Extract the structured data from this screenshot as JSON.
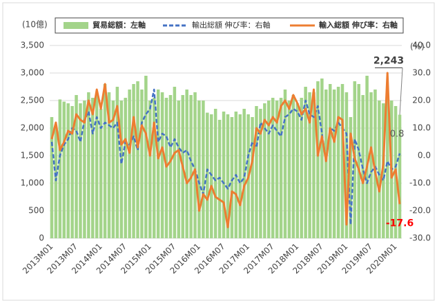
{
  "chart_data": {
    "type": "bar_line",
    "left_axis_unit": "(10億)",
    "right_axis_unit": "(%)",
    "categories": [
      "2013M01",
      null,
      null,
      null,
      null,
      null,
      "2013M07",
      null,
      null,
      null,
      null,
      null,
      "2014M01",
      null,
      null,
      null,
      null,
      null,
      "2014M07",
      null,
      null,
      null,
      null,
      null,
      "2015M01",
      null,
      null,
      null,
      null,
      null,
      "2015M07",
      null,
      null,
      null,
      null,
      null,
      "2016M01",
      null,
      null,
      null,
      null,
      null,
      "2016M07",
      null,
      null,
      null,
      null,
      null,
      "2017M01",
      null,
      null,
      null,
      null,
      null,
      "2017M07",
      null,
      null,
      null,
      null,
      null,
      "2018M01",
      null,
      null,
      null,
      null,
      null,
      "2018M07",
      null,
      null,
      null,
      null,
      null,
      "2019M01",
      null,
      null,
      null,
      null,
      null,
      "2019M07",
      null,
      null,
      null,
      null,
      null,
      "2020M01",
      null
    ],
    "ylim": [
      0,
      3500
    ],
    "yticks": [
      0,
      500,
      {
        "value": 1000,
        "label": "1,000"
      },
      {
        "value": 1500,
        "label": "1,500"
      },
      {
        "value": 2000,
        "label": "2,000"
      },
      {
        "value": 2500,
        "label": "2,500"
      },
      {
        "value": 3000,
        "label": "3,000"
      },
      {
        "value": 3500,
        "label": "3,500"
      }
    ],
    "y2lim": [
      -30,
      40
    ],
    "y2ticks": [
      {
        "value": -30,
        "label": "-30.0"
      },
      {
        "value": -20,
        "label": "-20.0"
      },
      {
        "value": -10,
        "label": "-10.0"
      },
      {
        "value": 0,
        "label": "0.0"
      },
      {
        "value": 10,
        "label": "10.0"
      },
      {
        "value": 20,
        "label": "20.0"
      },
      {
        "value": 30,
        "label": "30.0"
      },
      {
        "value": 40,
        "label": "40.0"
      }
    ],
    "grid": true,
    "legend": "top",
    "series": [
      {
        "name": "貿易総額：左軸",
        "type": "bar",
        "color": "#a3d48a",
        "values": [
          2200,
          2050,
          2520,
          2480,
          2450,
          2400,
          2600,
          2450,
          2500,
          2650,
          2550,
          2600,
          2350,
          2800,
          2650,
          2500,
          2750,
          2500,
          2550,
          2700,
          2800,
          2850,
          2700,
          2950,
          2500,
          2550,
          2700,
          2650,
          2550,
          2600,
          2750,
          2500,
          2600,
          2700,
          2600,
          2650,
          2500,
          2500,
          2280,
          2250,
          2350,
          2150,
          2300,
          2250,
          2200,
          2300,
          2250,
          2350,
          2250,
          2200,
          2400,
          2350,
          2450,
          2500,
          2550,
          2500,
          2550,
          2700,
          2500,
          2600,
          2450,
          2550,
          2750,
          2650,
          2650,
          2850,
          2900,
          2700,
          2800,
          2700,
          2750,
          2800,
          2650,
          2200,
          2850,
          2800,
          2600,
          2950,
          2650,
          2700,
          2500,
          2450,
          2750,
          2500,
          2400,
          2243
        ],
        "value_labels": [
          null,
          null,
          null,
          null,
          null,
          null,
          null,
          null,
          null,
          null,
          null,
          null,
          null,
          null,
          null,
          null,
          null,
          null,
          null,
          null,
          null,
          null,
          null,
          null,
          null,
          null,
          null,
          null,
          null,
          null,
          null,
          null,
          null,
          null,
          null,
          null,
          null,
          null,
          null,
          null,
          null,
          null,
          null,
          null,
          null,
          null,
          null,
          null,
          null,
          null,
          null,
          null,
          null,
          null,
          null,
          null,
          null,
          null,
          null,
          null,
          null,
          null,
          null,
          null,
          null,
          null,
          null,
          null,
          null,
          null,
          null,
          null,
          null,
          null,
          null,
          null,
          null,
          null,
          null,
          null,
          null,
          null,
          null,
          null,
          null,
          "2,243"
        ]
      },
      {
        "name": "輸出総額 伸び率：右軸",
        "type": "line",
        "axis": "y2",
        "color": "#4472c4",
        "dash": true,
        "values": [
          5,
          -9,
          0,
          4,
          6,
          10,
          9,
          5,
          13,
          16,
          8,
          14,
          10,
          12,
          11,
          10,
          12,
          -3,
          5,
          4,
          7,
          2,
          12,
          15,
          17,
          24,
          5,
          8,
          7,
          3,
          6,
          3,
          1,
          2,
          -2,
          -5,
          -10,
          -14,
          -5,
          -7,
          -9,
          -8,
          -10,
          -12,
          -9,
          -7,
          -10,
          -8,
          0,
          5,
          3,
          12,
          10,
          8,
          11,
          9,
          7,
          14,
          15,
          17,
          16,
          13,
          20,
          15,
          14,
          18,
          8,
          -2,
          10,
          9,
          12,
          10,
          8,
          -25,
          6,
          2,
          -5,
          -10,
          -6,
          -4,
          -7,
          -9,
          -2,
          -5,
          -4,
          0.8
        ],
        "value_labels": [
          null,
          null,
          null,
          null,
          null,
          null,
          null,
          null,
          null,
          null,
          null,
          null,
          null,
          null,
          null,
          null,
          null,
          null,
          null,
          null,
          null,
          null,
          null,
          null,
          null,
          null,
          null,
          null,
          null,
          null,
          null,
          null,
          null,
          null,
          null,
          null,
          null,
          null,
          null,
          null,
          null,
          null,
          null,
          null,
          null,
          null,
          null,
          null,
          null,
          null,
          null,
          null,
          null,
          null,
          null,
          null,
          null,
          null,
          null,
          null,
          null,
          null,
          null,
          null,
          null,
          null,
          null,
          null,
          null,
          null,
          null,
          null,
          null,
          null,
          null,
          null,
          null,
          null,
          null,
          null,
          null,
          null,
          null,
          null,
          null,
          "0.8"
        ]
      },
      {
        "name": "輸入総額 伸び率：右軸",
        "type": "line",
        "axis": "y2",
        "color": "#ed7d31",
        "dash": false,
        "values": [
          6,
          12,
          2,
          5,
          9,
          8,
          15,
          13,
          12,
          20,
          15,
          24,
          17,
          26,
          12,
          13,
          18,
          4,
          6,
          1,
          14,
          3,
          11,
          8,
          0,
          12,
          -1,
          3,
          -4,
          -2,
          1,
          2,
          -4,
          -10,
          -8,
          -5,
          -20,
          -14,
          -16,
          -11,
          -15,
          -16,
          -17,
          -26,
          -13,
          -14,
          -18,
          -11,
          -8,
          -2,
          10,
          8,
          13,
          11,
          14,
          12,
          18,
          20,
          17,
          22,
          19,
          15,
          17,
          12,
          24,
          0,
          7,
          -2,
          10,
          5,
          14,
          13,
          -25,
          8,
          -1,
          -5,
          -10,
          -4,
          3,
          -6,
          -13,
          -3,
          30,
          -8,
          -5,
          -17.6
        ],
        "value_labels": [
          null,
          null,
          null,
          null,
          null,
          null,
          null,
          null,
          null,
          null,
          null,
          null,
          null,
          null,
          null,
          null,
          null,
          null,
          null,
          null,
          null,
          null,
          null,
          null,
          null,
          null,
          null,
          null,
          null,
          null,
          null,
          null,
          null,
          null,
          null,
          null,
          null,
          null,
          null,
          null,
          null,
          null,
          null,
          null,
          null,
          null,
          null,
          null,
          null,
          null,
          null,
          null,
          null,
          null,
          null,
          null,
          null,
          null,
          null,
          null,
          null,
          null,
          null,
          null,
          null,
          null,
          null,
          null,
          null,
          null,
          null,
          null,
          null,
          null,
          null,
          null,
          null,
          null,
          null,
          null,
          null,
          null,
          null,
          null,
          null,
          "-17.6"
        ]
      }
    ]
  }
}
